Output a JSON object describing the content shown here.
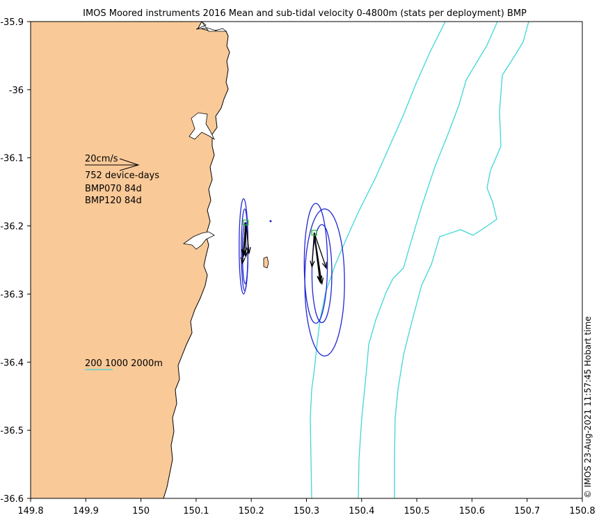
{
  "title": "IMOS Moored instruments 2016 Mean and sub-tidal velocity 0-4800m (stats per deployment) BMP",
  "timestamp_text": "© IMOS 23-Aug-2021 11:57:45 Hobart time",
  "colors": {
    "land": "#f9c998",
    "isobath": "#3fd6d6",
    "ellipse": "#1f27d1",
    "arrow": "#000000",
    "station_marker": "#2fbf2f"
  },
  "legend": {
    "scale_label": "20cm/s",
    "device_days": "752 device-days",
    "deployments": [
      "BMP070 84d",
      "BMP120 84d"
    ],
    "isobath_label": "200 1000 2000m"
  },
  "chart_data": {
    "type": "map",
    "x_axis": {
      "ticks": [
        149.8,
        149.9,
        150,
        150.1,
        150.2,
        150.3,
        150.4,
        150.5,
        150.6,
        150.7,
        150.8
      ],
      "tick_labels": [
        "149.8",
        "149.9",
        "150",
        "150.1",
        "150.2",
        "150.3",
        "150.4",
        "150.5",
        "150.6",
        "150.7",
        "150.8"
      ],
      "range": [
        149.8,
        150.8
      ]
    },
    "y_axis": {
      "ticks": [
        -35.9,
        -36,
        -36.1,
        -36.2,
        -36.3,
        -36.4,
        -36.5,
        -36.6
      ],
      "tick_labels": [
        "-35.9",
        "-36",
        "-36.1",
        "-36.2",
        "-36.3",
        "-36.4",
        "-36.5",
        "-36.6"
      ],
      "range": [
        -36.6,
        -35.9
      ]
    },
    "stations": [
      {
        "name": "BMP070",
        "lon": 150.19,
        "lat": -36.195,
        "mean_arrow_end": [
          150.186,
          -36.243
        ],
        "subtidal_arrows": [
          [
            150.19,
            -36.245
          ],
          [
            150.184,
            -36.255
          ],
          [
            150.196,
            -36.24
          ]
        ],
        "ellipses": [
          {
            "cx": 150.186,
            "cy": -36.23,
            "rx": 0.008,
            "ry": 0.07
          },
          {
            "cx": 150.188,
            "cy": -36.235,
            "rx": 0.006,
            "ry": 0.06
          },
          {
            "cx": 150.189,
            "cy": -36.24,
            "rx": 0.005,
            "ry": 0.045
          }
        ]
      },
      {
        "name": "BMP120",
        "lon": 150.314,
        "lat": -36.21,
        "mean_arrow_end": [
          150.325,
          -36.282
        ],
        "subtidal_arrows": [
          [
            150.328,
            -36.285
          ],
          [
            150.336,
            -36.262
          ],
          [
            150.31,
            -36.26
          ]
        ],
        "ellipses": [
          {
            "cx": 150.333,
            "cy": -36.283,
            "rx": 0.036,
            "ry": 0.108
          },
          {
            "cx": 150.317,
            "cy": -36.255,
            "rx": 0.021,
            "ry": 0.088
          },
          {
            "cx": 150.328,
            "cy": -36.27,
            "rx": 0.018,
            "ry": 0.072
          }
        ]
      }
    ],
    "extra_point": [
      150.235,
      -36.193
    ]
  }
}
